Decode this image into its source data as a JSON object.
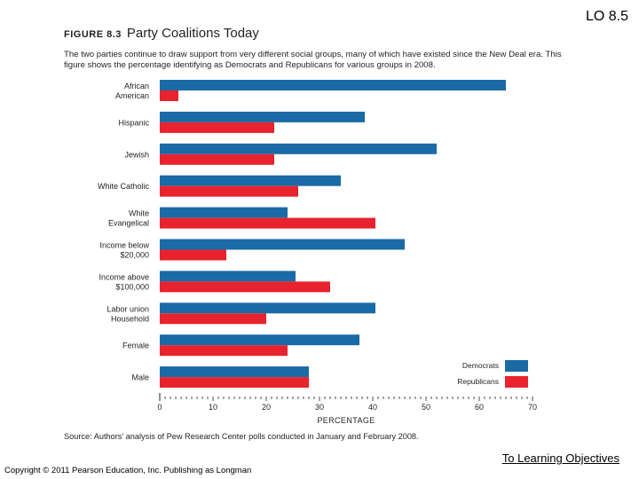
{
  "header": {
    "lo_label": "LO 8.5"
  },
  "figure": {
    "number": "FIGURE 8.3",
    "title": "Party Coalitions Today",
    "caption": "The two parties continue to draw support from very different social groups, many of which have existed since the New Deal era. This figure shows the percentage identifying as Democrats and Republicans for various groups in 2008.",
    "source": "Source: Authors' analysis of Pew Research Center polls conducted in January and February 2008."
  },
  "chart_data": {
    "type": "bar",
    "orientation": "horizontal",
    "title": "Party Coalitions Today",
    "xlabel": "PERCENTAGE",
    "ylabel": "",
    "xlim": [
      0,
      70
    ],
    "xticks": [
      0,
      10,
      20,
      30,
      40,
      50,
      60,
      70
    ],
    "grid": false,
    "legend_position": "bottom-right",
    "categories": [
      [
        "African",
        "American"
      ],
      [
        "Hispanic"
      ],
      [
        "Jewish"
      ],
      [
        "White Catholic"
      ],
      [
        "White",
        "Evangelical"
      ],
      [
        "Income below",
        "$20,000"
      ],
      [
        "Income above",
        "$100,000"
      ],
      [
        "Labor union",
        "Household"
      ],
      [
        "Female"
      ],
      [
        "Male"
      ]
    ],
    "series": [
      {
        "name": "Democrats",
        "color": "#1a6aa6",
        "values": [
          65,
          38.5,
          52,
          34,
          24,
          46,
          25.5,
          40.5,
          37.5,
          28
        ]
      },
      {
        "name": "Republicans",
        "color": "#e8232e",
        "values": [
          3.5,
          21.5,
          21.5,
          26,
          40.5,
          12.5,
          32,
          20,
          24,
          28
        ]
      }
    ]
  },
  "footer": {
    "link_text": "To Learning Objectives",
    "copyright": "Copyright © 2011 Pearson Education, Inc. Publishing as Longman"
  }
}
